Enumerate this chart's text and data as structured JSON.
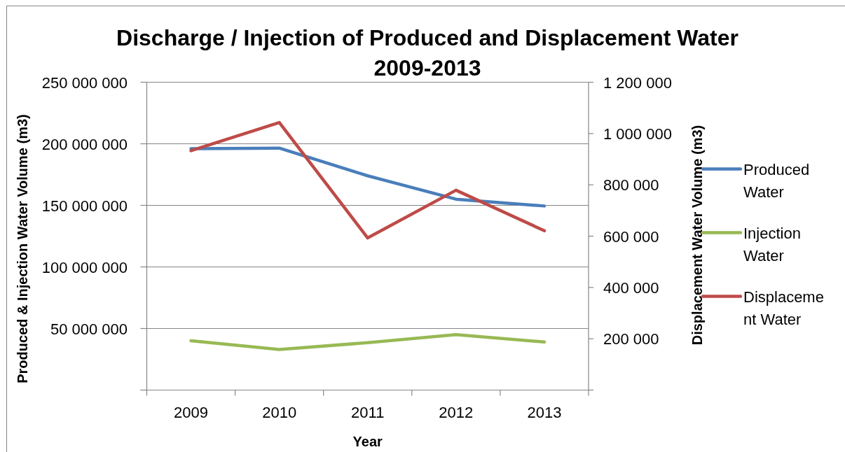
{
  "chart_data": {
    "type": "line",
    "title": "Discharge / Injection of Produced and Displacement Water 2009-2013",
    "xlabel": "Year",
    "ylabel": "Produced & Injection Water Volume (m3)",
    "y2label": "Displacement Water Volume (m3)",
    "categories": [
      "2009",
      "2010",
      "2011",
      "2012",
      "2013"
    ],
    "series": [
      {
        "name": "Produced Water",
        "color": "#4a7ebb",
        "values": [
          196000000,
          196500000,
          174000000,
          155000000,
          149500000
        ]
      },
      {
        "name": "Injection Water",
        "color": "#98b954",
        "values": [
          40000000,
          33000000,
          38500000,
          45000000,
          39000000
        ]
      },
      {
        "name": "Displacement Water",
        "color": "#be4b48",
        "axis": "y2",
        "values": [
          933000,
          1043000,
          593000,
          779000,
          621000
        ]
      }
    ],
    "ylim": [
      0,
      250000000
    ],
    "yticks": [
      {
        "value": 0,
        "label": null
      },
      {
        "value": 50000000,
        "label": "50 000 000"
      },
      {
        "value": 100000000,
        "label": "100 000 000"
      },
      {
        "value": 150000000,
        "label": "150 000 000"
      },
      {
        "value": 200000000,
        "label": "200 000 000"
      },
      {
        "value": 250000000,
        "label": "250 000 000"
      }
    ],
    "y2lim": [
      0,
      1200000
    ],
    "y2ticks": [
      {
        "value": 0,
        "label": null
      },
      {
        "value": 200000,
        "label": "200 000"
      },
      {
        "value": 400000,
        "label": "400 000"
      },
      {
        "value": 600000,
        "label": "600 000"
      },
      {
        "value": 800000,
        "label": "800 000"
      },
      {
        "value": 1000000,
        "label": "1 000 000"
      },
      {
        "value": 1200000,
        "label": "1 200 000"
      }
    ],
    "grid": "y",
    "legend": "right"
  }
}
